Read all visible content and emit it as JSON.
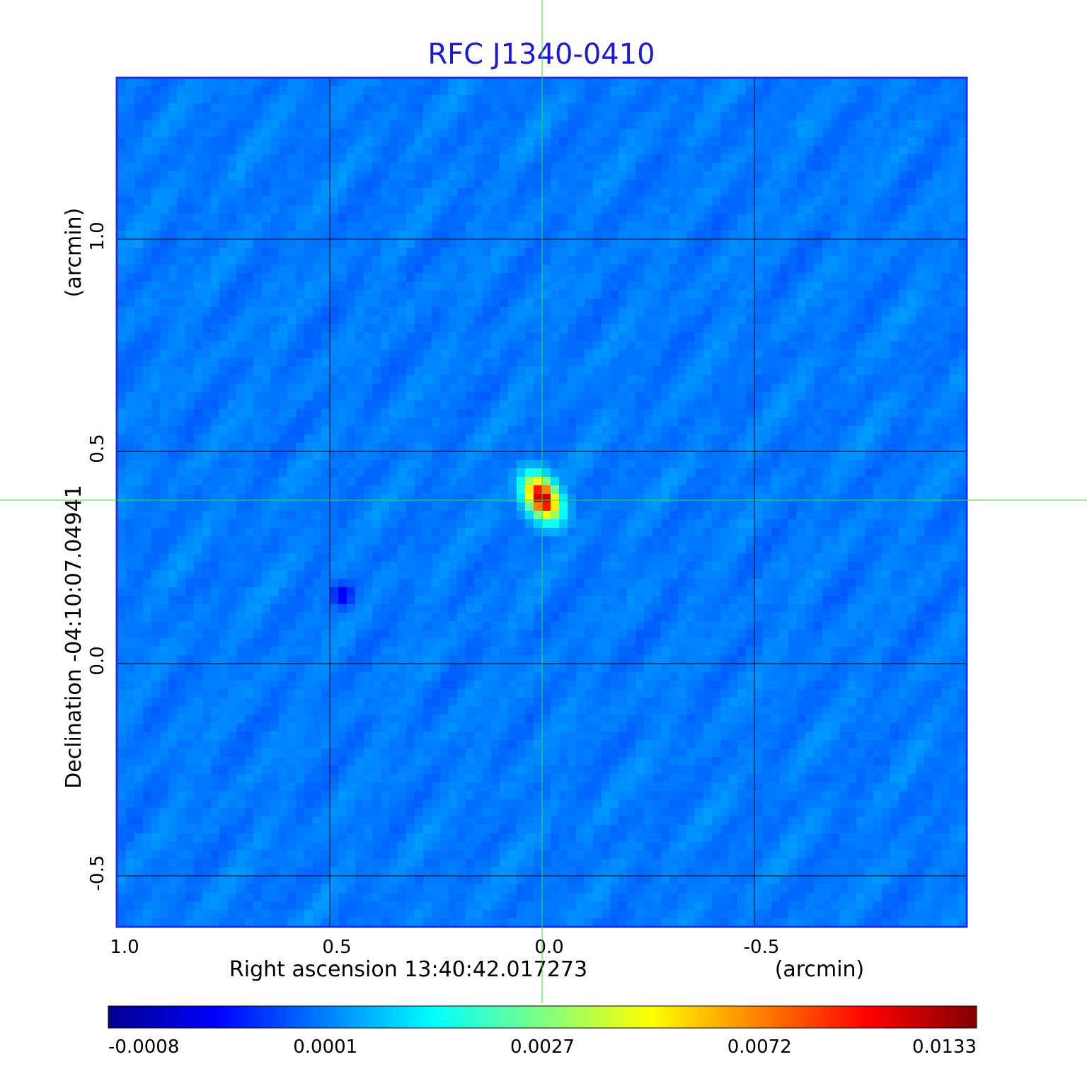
{
  "chart_data": {
    "type": "heatmap",
    "title": "RFC J1340-0410",
    "xlabel": "Right ascension  13:40:42.017273",
    "xunit": "(arcmin)",
    "ylabel": "Declination  -04:10:07.04941",
    "yunit": "(arcmin)",
    "x_ticks": [
      "1.0",
      "0.5",
      "0.0",
      "-0.5"
    ],
    "y_ticks": [
      "1.0",
      "0.5",
      "0.0",
      "-0.5"
    ],
    "x_tick_values": [
      1.0,
      0.5,
      0.0,
      -0.5
    ],
    "y_tick_values": [
      1.0,
      0.5,
      0.0,
      -0.5
    ],
    "xlim": [
      1.0,
      -1.0
    ],
    "ylim": [
      -0.62,
      1.38
    ],
    "grid": true,
    "crosshair": {
      "x": 0.0,
      "y": 0.385
    },
    "colorbar": {
      "colormap": "jet",
      "tick_labels": [
        "-0.0008",
        "0.0001",
        "0.0027",
        "0.0072",
        "0.0133"
      ],
      "tick_values": [
        -0.0008,
        0.0001,
        0.0027,
        0.0072,
        0.0133
      ]
    },
    "features": [
      {
        "kind": "peak",
        "x": 0.0,
        "y": 0.39,
        "value": 0.0133
      },
      {
        "kind": "minimum",
        "x": 0.47,
        "y": 0.16,
        "value": -0.0008
      }
    ],
    "background_level": 0.0003
  },
  "colors": {
    "title": "#1a1ad6",
    "frame": "#1a33e0",
    "grid": "#000000",
    "crosshair": "#33dd33",
    "text": "#000000"
  }
}
